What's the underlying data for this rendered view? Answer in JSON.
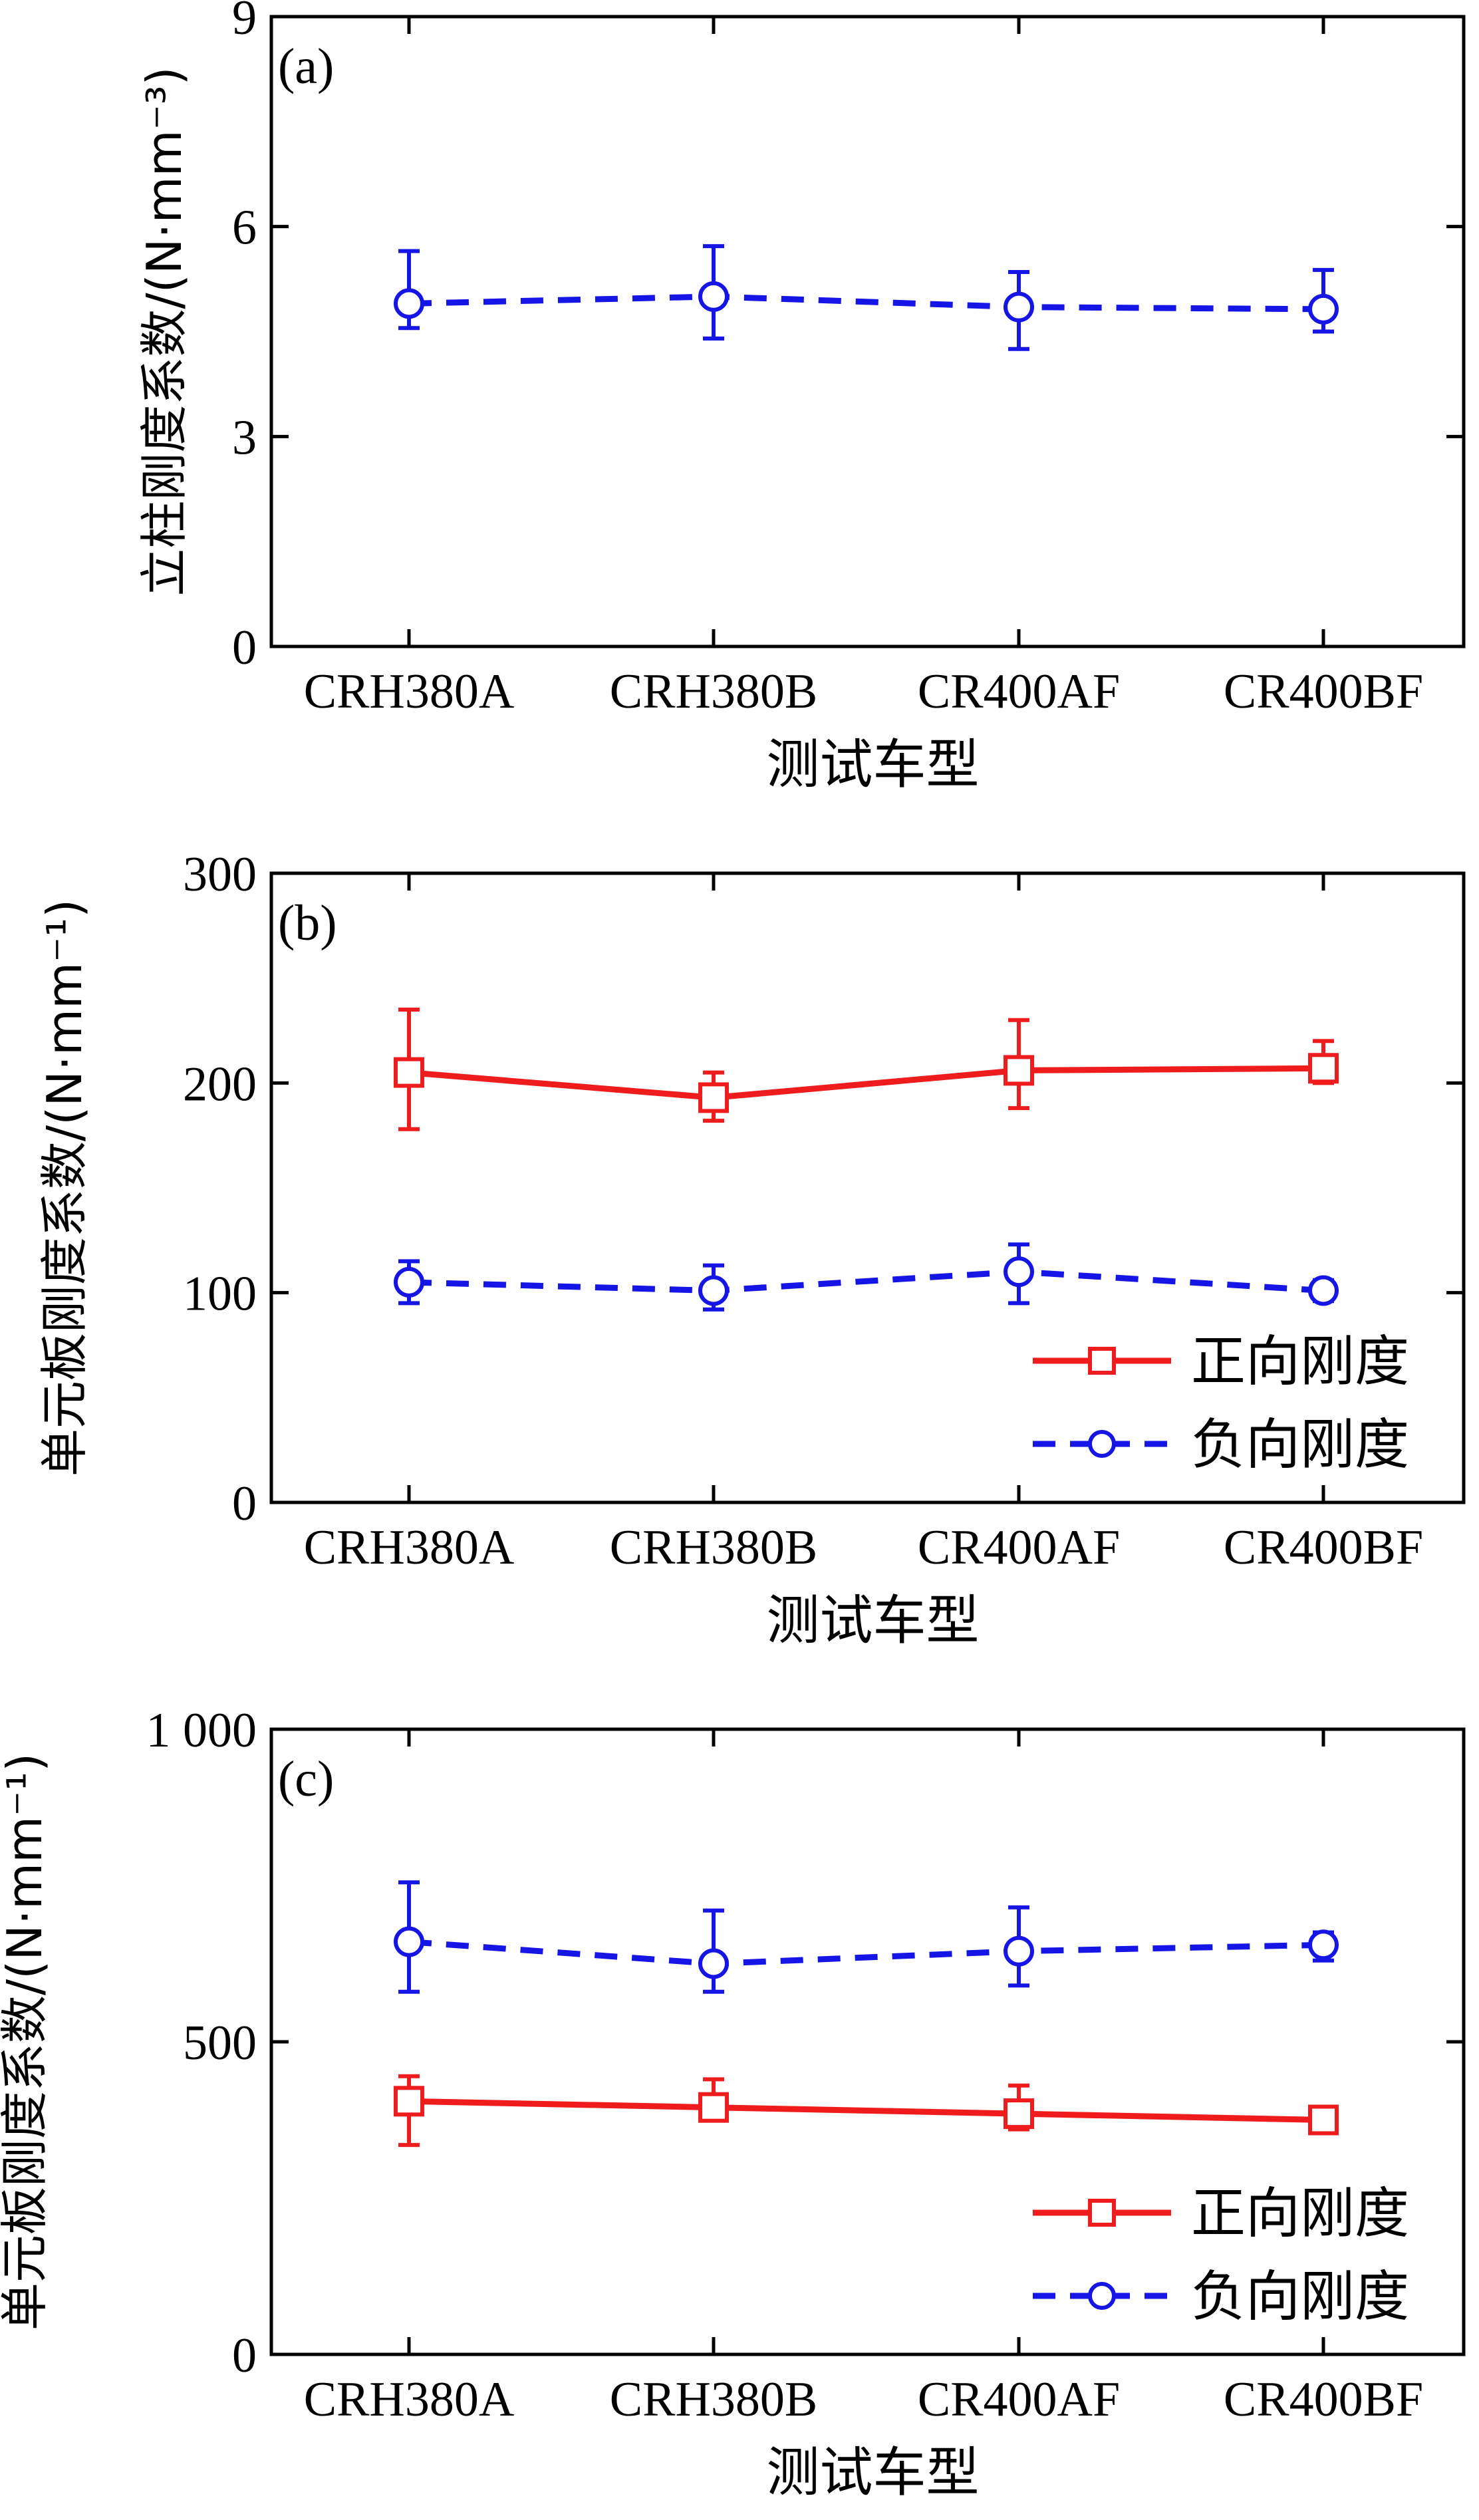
{
  "chart_data": [
    {
      "type": "line",
      "panel_label": "(a)",
      "title": "",
      "xlabel": "测试车型",
      "ylabel": "立柱刚度系数/(N·mm⁻³)",
      "categories": [
        "CRH380A",
        "CRH380B",
        "CR400AF",
        "CR400BF"
      ],
      "yticks": [
        "0",
        "3",
        "6",
        "9"
      ],
      "ytick_values": [
        0,
        3,
        6,
        9
      ],
      "ylim": [
        0,
        9
      ],
      "grid": false,
      "legend": null,
      "series": [
        {
          "key": "neg",
          "values": [
            4.9,
            5.0,
            4.85,
            4.82
          ],
          "err_high": [
            5.65,
            5.72,
            5.35,
            5.38
          ],
          "err_low": [
            4.55,
            4.4,
            4.25,
            4.5
          ],
          "color": "#1515e6",
          "style": "dashed",
          "marker": "circle"
        }
      ]
    },
    {
      "type": "line",
      "panel_label": "(b)",
      "title": "",
      "xlabel": "测试车型",
      "ylabel": "单元板刚度系数/(N·mm⁻¹)",
      "categories": [
        "CRH380A",
        "CRH380B",
        "CR400AF",
        "CR400BF"
      ],
      "yticks": [
        "0",
        "100",
        "200",
        "300"
      ],
      "ytick_values": [
        0,
        100,
        200,
        300
      ],
      "ylim": [
        0,
        300
      ],
      "grid": false,
      "legend": {
        "position": "bottom-right",
        "entries": [
          {
            "label": "正向刚度",
            "color": "#ee1c1c",
            "style": "solid",
            "marker": "square"
          },
          {
            "label": "负向刚度",
            "color": "#1515e6",
            "style": "dashed",
            "marker": "circle"
          }
        ]
      },
      "series": [
        {
          "key": "pos",
          "values": [
            205,
            193,
            206,
            207
          ],
          "err_high": [
            235,
            205,
            230,
            220
          ],
          "err_low": [
            178,
            182,
            188,
            200
          ],
          "color": "#ee1c1c",
          "style": "solid",
          "marker": "square"
        },
        {
          "key": "neg",
          "values": [
            105,
            101,
            110,
            101
          ],
          "err_high": [
            115,
            113,
            123,
            106
          ],
          "err_low": [
            95,
            92,
            95,
            96
          ],
          "color": "#1515e6",
          "style": "dashed",
          "marker": "circle"
        }
      ]
    },
    {
      "type": "line",
      "panel_label": "(c)",
      "title": "",
      "xlabel": "测试车型",
      "ylabel": "单元板刚度系数/(N·mm⁻¹)",
      "categories": [
        "CRH380A",
        "CRH380B",
        "CR400AF",
        "CR400BF"
      ],
      "yticks": [
        "0",
        "500",
        "1 000"
      ],
      "ytick_values": [
        0,
        500,
        1000
      ],
      "ylim": [
        0,
        1000
      ],
      "grid": false,
      "legend": {
        "position": "bottom-right",
        "entries": [
          {
            "label": "正向刚度",
            "color": "#ee1c1c",
            "style": "solid",
            "marker": "square"
          },
          {
            "label": "负向刚度",
            "color": "#1515e6",
            "style": "dashed",
            "marker": "circle"
          }
        ]
      },
      "series": [
        {
          "key": "pos",
          "values": [
            405,
            395,
            385,
            375
          ],
          "err_high": [
            445,
            440,
            430,
            385
          ],
          "err_low": [
            335,
            375,
            360,
            362
          ],
          "color": "#ee1c1c",
          "style": "solid",
          "marker": "square"
        },
        {
          "key": "neg",
          "values": [
            660,
            625,
            645,
            655
          ],
          "err_high": [
            755,
            710,
            715,
            675
          ],
          "err_low": [
            580,
            580,
            590,
            630
          ],
          "color": "#1515e6",
          "style": "dashed",
          "marker": "circle"
        }
      ]
    }
  ]
}
